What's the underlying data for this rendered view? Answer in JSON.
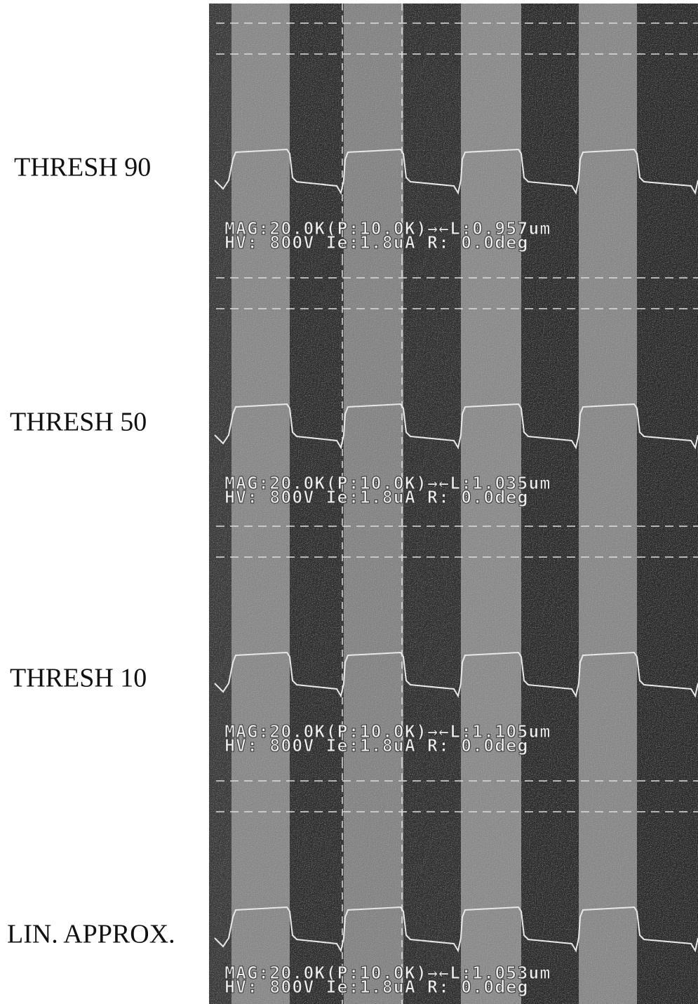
{
  "panels": [
    {
      "label": "THRESH 90",
      "overlay": [
        "MAG:20.0K(P:10.0K)→←L:0.957um",
        "HV: 800V  Ie:1.8uA  R:  0.0deg"
      ]
    },
    {
      "label": "THRESH 50",
      "overlay": [
        "MAG:20.0K(P:10.0K)→←L:1.035um",
        "HV: 800V  Ie:1.8uA  R:  0.0deg"
      ]
    },
    {
      "label": "THRESH 10",
      "overlay": [
        "MAG:20.0K(P:10.0K)→←L:1.105um",
        "HV: 800V  Ie:1.8uA  R:  0.0deg"
      ]
    },
    {
      "label": "LIN. APPROX.",
      "overlay": [
        "MAG:20.0K(P:10.0K)→←L:1.053um",
        "HV: 800V  Ie:1.8uA  R:  0.0deg"
      ]
    }
  ]
}
